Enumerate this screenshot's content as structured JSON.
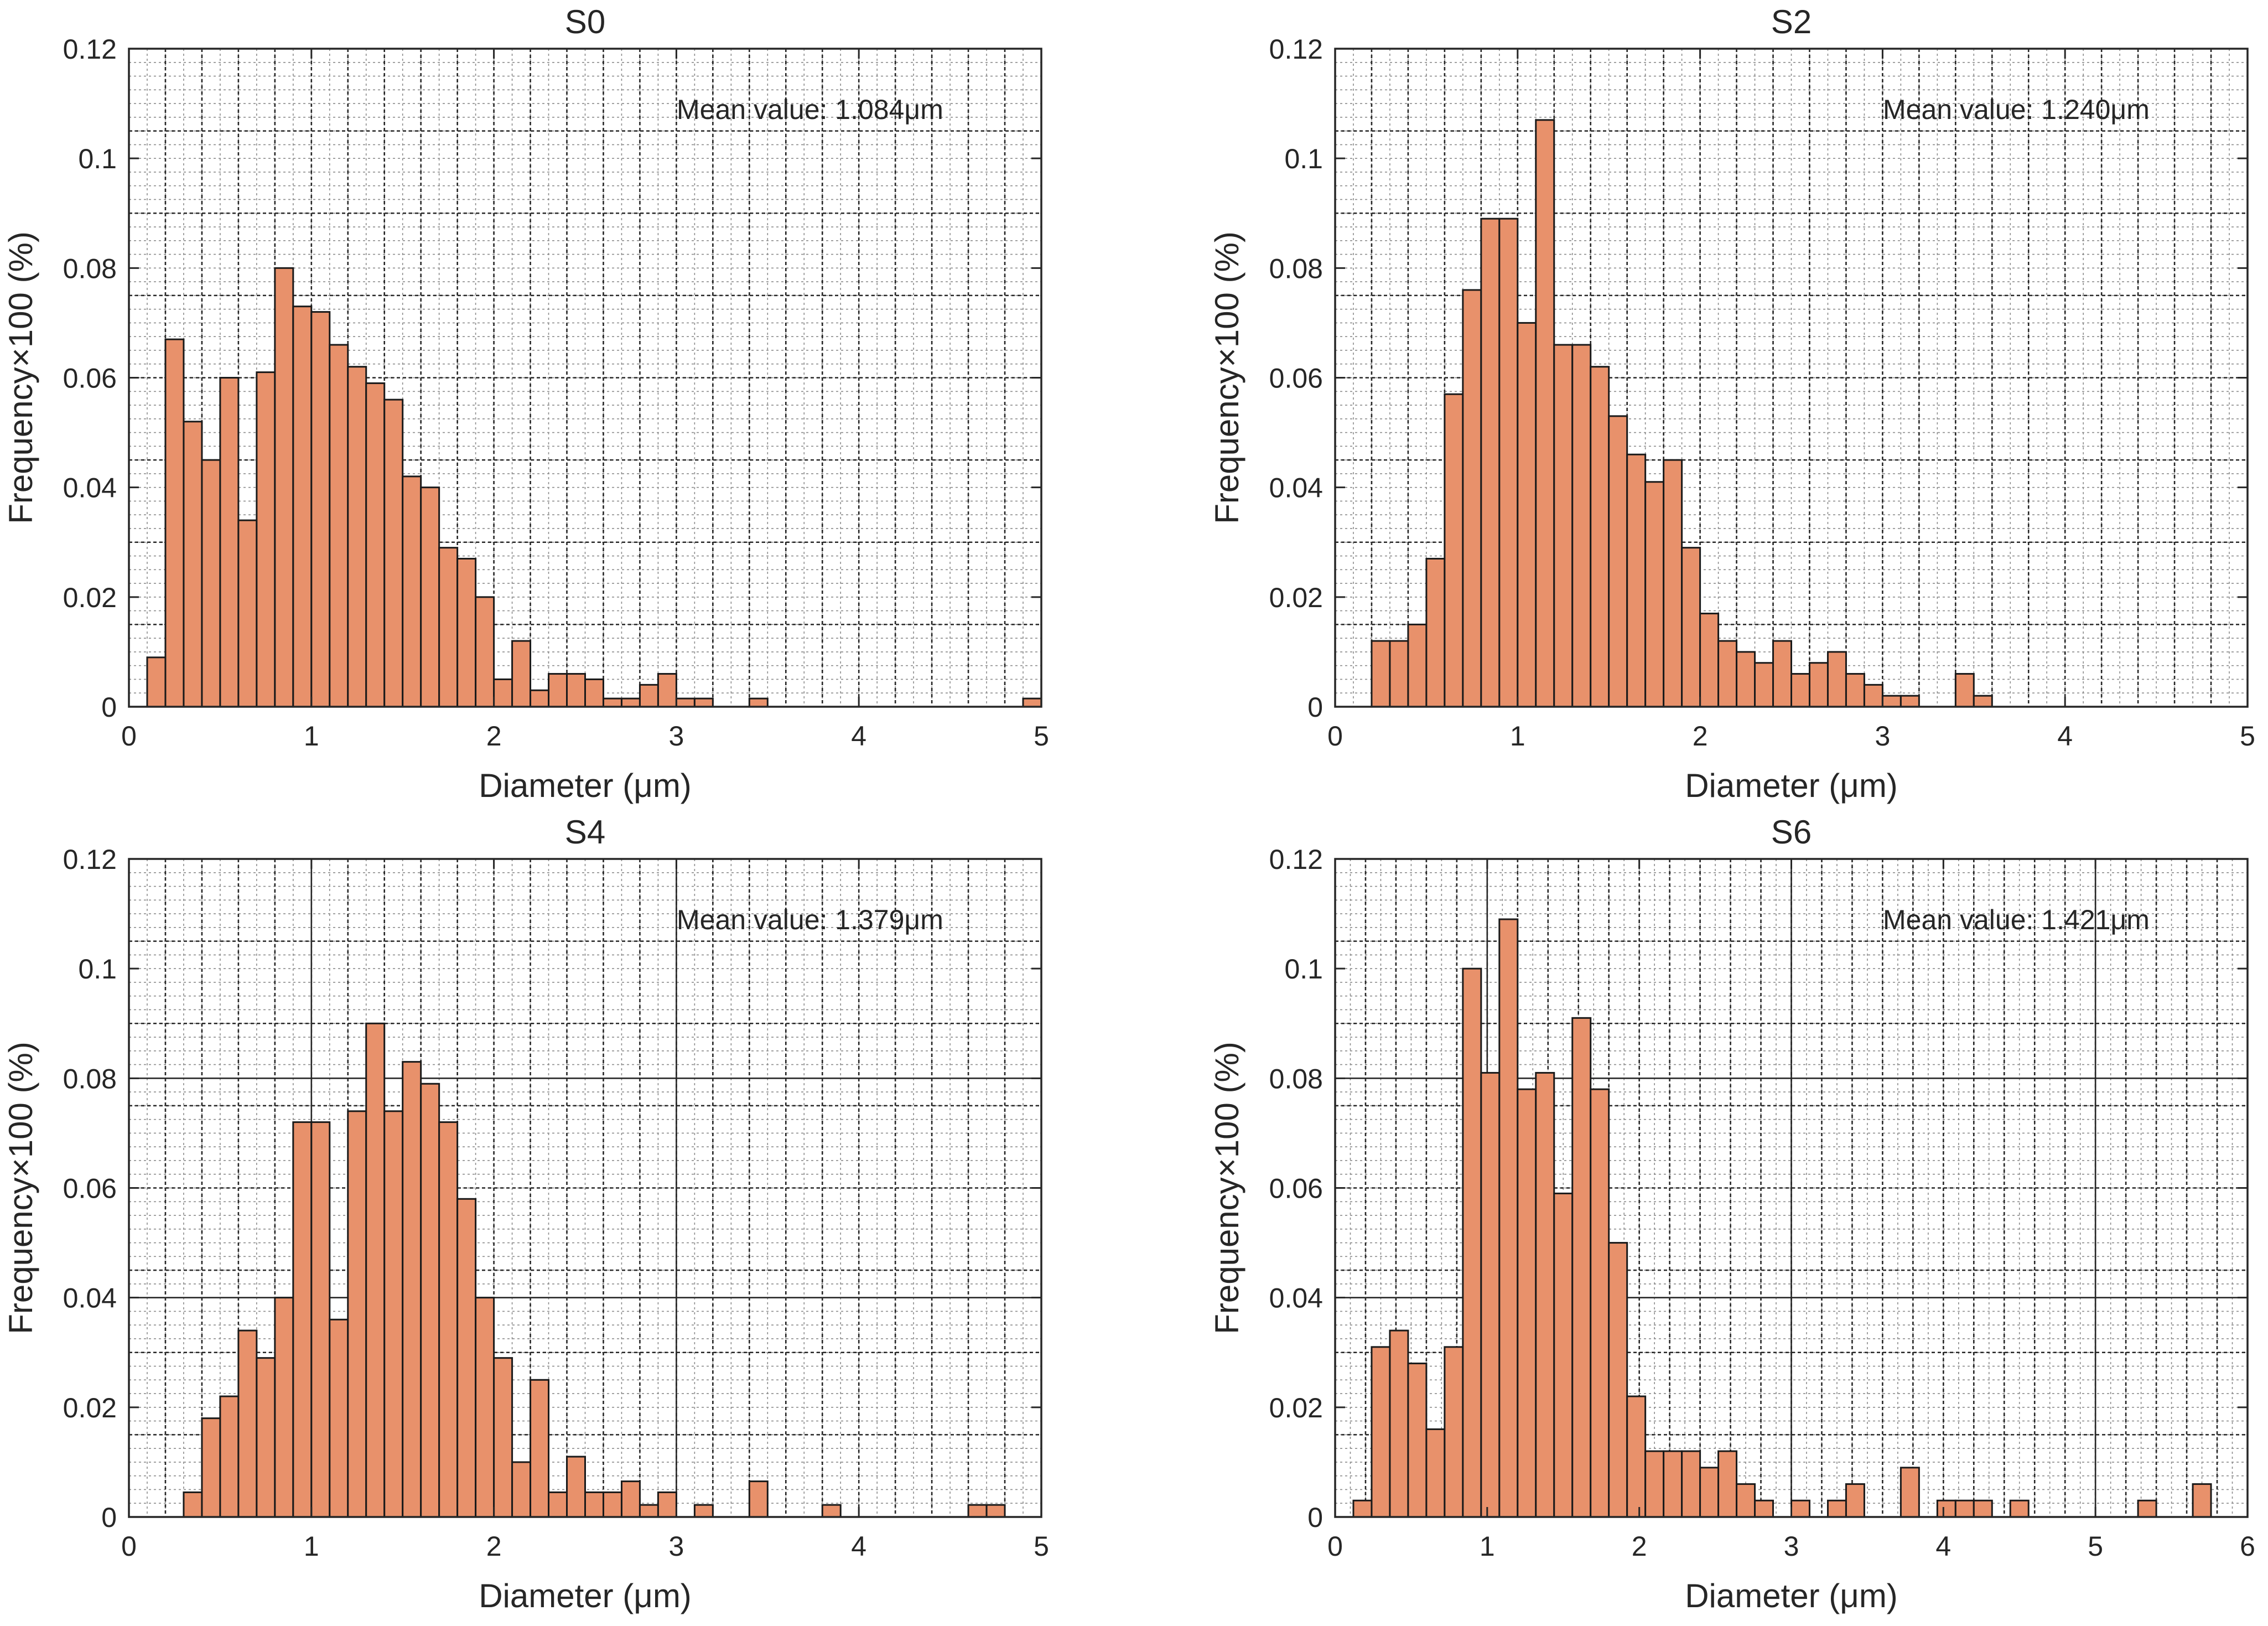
{
  "chart_data": [
    {
      "type": "bar",
      "title": "S0",
      "xlabel": "Diameter (μm)",
      "ylabel": "Frequency×100 (%)",
      "annotation": "Mean value: 1.084μm",
      "xlim": [
        0,
        5
      ],
      "ylim": [
        0,
        0.12
      ],
      "xticks": [
        "0",
        "1",
        "2",
        "3",
        "4",
        "5"
      ],
      "yticks": [
        "0",
        "0.02",
        "0.04",
        "0.06",
        "0.08",
        "0.1",
        "0.12"
      ],
      "bin_width": 0.1,
      "bin_start": 0.1,
      "values": [
        0.009,
        0.067,
        0.052,
        0.045,
        0.06,
        0.034,
        0.061,
        0.08,
        0.073,
        0.072,
        0.066,
        0.062,
        0.059,
        0.056,
        0.042,
        0.04,
        0.029,
        0.027,
        0.02,
        0.005,
        0.012,
        0.003,
        0.006,
        0.006,
        0.005,
        0.0015,
        0.0015,
        0.004,
        0.006,
        0.0015,
        0.0015,
        0,
        0,
        0.0015,
        0,
        0,
        0,
        0,
        0,
        0,
        0,
        0,
        0,
        0,
        0,
        0,
        0,
        0,
        0.0015
      ]
    },
    {
      "type": "bar",
      "title": "S2",
      "xlabel": "Diameter (μm)",
      "ylabel": "Frequency×100 (%)",
      "annotation": "Mean value: 1.240μm",
      "xlim": [
        0,
        5
      ],
      "ylim": [
        0,
        0.12
      ],
      "xticks": [
        "0",
        "1",
        "2",
        "3",
        "4",
        "5"
      ],
      "yticks": [
        "0",
        "0.02",
        "0.04",
        "0.06",
        "0.08",
        "0.1",
        "0.12"
      ],
      "bin_width": 0.1,
      "bin_start": 0.2,
      "values": [
        0.012,
        0.012,
        0.015,
        0.027,
        0.057,
        0.076,
        0.089,
        0.089,
        0.07,
        0.107,
        0.066,
        0.066,
        0.062,
        0.053,
        0.046,
        0.041,
        0.045,
        0.029,
        0.017,
        0.012,
        0.01,
        0.008,
        0.012,
        0.006,
        0.008,
        0.01,
        0.006,
        0.004,
        0.002,
        0.002,
        0,
        0,
        0.006,
        0.002
      ]
    },
    {
      "type": "bar",
      "title": "S4",
      "xlabel": "Diameter (μm)",
      "ylabel": "Frequency×100 (%)",
      "annotation": "Mean value: 1.379μm",
      "xlim": [
        0,
        5
      ],
      "ylim": [
        0,
        0.12
      ],
      "xticks": [
        "0",
        "1",
        "2",
        "3",
        "4",
        "5"
      ],
      "yticks": [
        "0",
        "0.02",
        "0.04",
        "0.06",
        "0.08",
        "0.1",
        "0.12"
      ],
      "bin_width": 0.1,
      "bin_start": 0.3,
      "values": [
        0.0045,
        0.018,
        0.022,
        0.034,
        0.029,
        0.04,
        0.072,
        0.072,
        0.036,
        0.074,
        0.09,
        0.074,
        0.083,
        0.079,
        0.072,
        0.058,
        0.04,
        0.029,
        0.01,
        0.025,
        0.0045,
        0.011,
        0.0045,
        0.0045,
        0.0065,
        0.0022,
        0.0045,
        0,
        0.0022,
        0,
        0,
        0.0065,
        0,
        0,
        0,
        0.0022,
        0,
        0,
        0,
        0,
        0,
        0,
        0,
        0.0022,
        0.0022
      ]
    },
    {
      "type": "bar",
      "title": "S6",
      "xlabel": "Diameter (μm)",
      "ylabel": "Frequency×100 (%)",
      "annotation": "Mean value: 1.421μm",
      "xlim": [
        0,
        6
      ],
      "ylim": [
        0,
        0.12
      ],
      "xticks": [
        "0",
        "1",
        "2",
        "3",
        "4",
        "5",
        "6"
      ],
      "yticks": [
        "0",
        "0.02",
        "0.04",
        "0.06",
        "0.08",
        "0.1",
        "0.12"
      ],
      "bin_width": 0.12,
      "bin_start": 0.12,
      "values": [
        0.003,
        0.031,
        0.034,
        0.028,
        0.016,
        0.031,
        0.1,
        0.081,
        0.109,
        0.078,
        0.081,
        0.059,
        0.091,
        0.078,
        0.05,
        0.022,
        0.012,
        0.012,
        0.012,
        0.009,
        0.012,
        0.006,
        0.003,
        0,
        0.003,
        0,
        0.003,
        0.006,
        0,
        0,
        0.009,
        0,
        0.003,
        0.003,
        0.003,
        0,
        0.003,
        0,
        0,
        0,
        0,
        0,
        0,
        0.003,
        0,
        0,
        0.006
      ]
    }
  ]
}
